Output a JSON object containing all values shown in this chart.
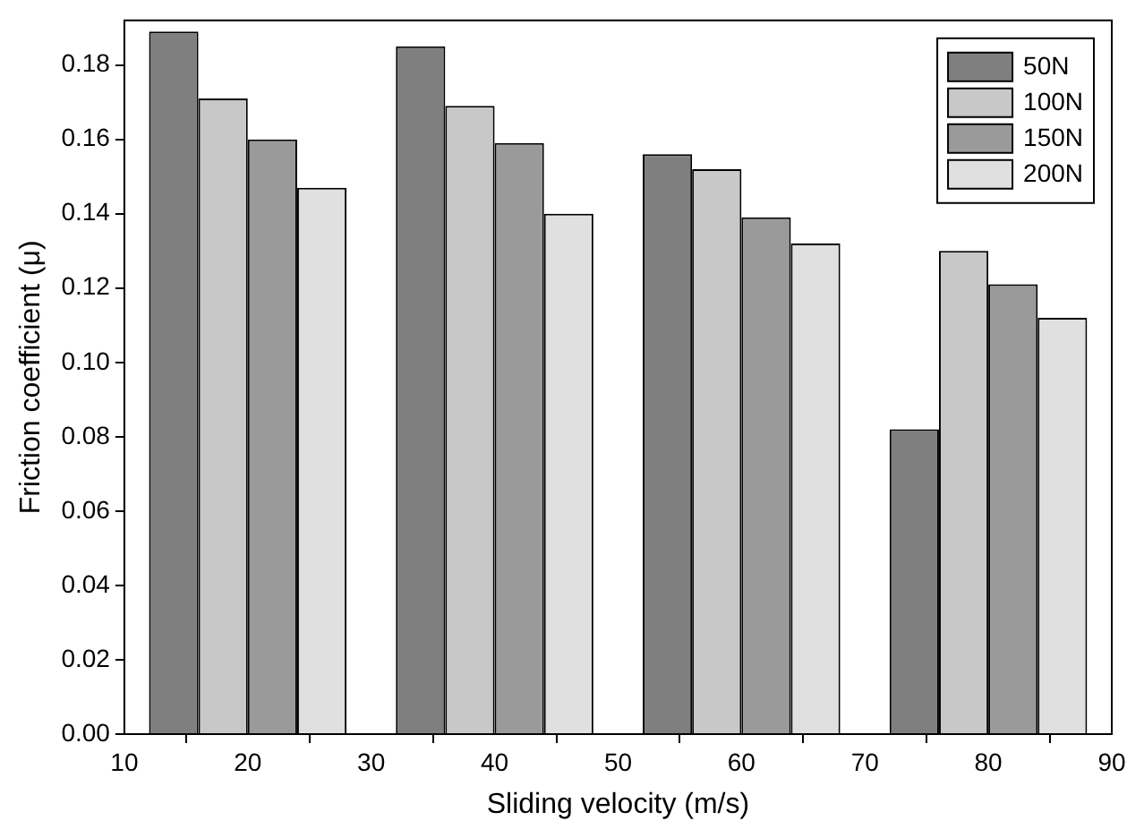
{
  "chart_data": {
    "type": "bar",
    "xlabel": "Sliding velocity (m/s)",
    "ylabel": "Friction coefficient (μ)",
    "x": [
      20,
      40,
      60,
      80
    ],
    "series": [
      {
        "name": "50N",
        "color": "#7f7f7f",
        "values": [
          0.189,
          0.185,
          0.156,
          0.082
        ]
      },
      {
        "name": "100N",
        "color": "#c8c8c8",
        "values": [
          0.171,
          0.169,
          0.152,
          0.13
        ]
      },
      {
        "name": "150N",
        "color": "#9a9a9a",
        "values": [
          0.16,
          0.159,
          0.139,
          0.121
        ]
      },
      {
        "name": "200N",
        "color": "#e0e0e0",
        "values": [
          0.147,
          0.14,
          0.132,
          0.112
        ]
      }
    ],
    "xlim": [
      10,
      90
    ],
    "xticks": [
      10,
      20,
      30,
      40,
      50,
      60,
      70,
      80,
      90
    ],
    "ylim": [
      0,
      0.192
    ],
    "yticks": [
      {
        "value": 0,
        "label": "0.00"
      },
      0.02,
      0.04,
      0.06,
      0.08,
      {
        "value": 0.1,
        "label": "0.10"
      },
      0.12,
      0.14,
      0.16,
      0.18
    ],
    "grid": false,
    "legend": "top right"
  }
}
